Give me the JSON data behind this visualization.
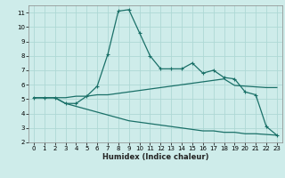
{
  "bg_color": "#ceecea",
  "grid_color": "#aed8d5",
  "line_color": "#1a7068",
  "xlabel": "Humidex (Indice chaleur)",
  "xlim": [
    -0.5,
    23.5
  ],
  "ylim": [
    2,
    11.5
  ],
  "yticks": [
    2,
    3,
    4,
    5,
    6,
    7,
    8,
    9,
    10,
    11
  ],
  "xticks": [
    0,
    1,
    2,
    3,
    4,
    5,
    6,
    7,
    8,
    9,
    10,
    11,
    12,
    13,
    14,
    15,
    16,
    17,
    18,
    19,
    20,
    21,
    22,
    23
  ],
  "line1_x": [
    0,
    1,
    2,
    3,
    4,
    5,
    6,
    7,
    8,
    9,
    10,
    11,
    12,
    13,
    14,
    15,
    16,
    17,
    18,
    19,
    20,
    21,
    22,
    23
  ],
  "line1_y": [
    5.1,
    5.1,
    5.1,
    4.7,
    4.7,
    5.2,
    5.9,
    8.1,
    11.1,
    11.2,
    9.6,
    8.0,
    7.1,
    7.1,
    7.1,
    7.5,
    6.8,
    7.0,
    6.5,
    6.4,
    5.5,
    5.3,
    3.1,
    2.5
  ],
  "line2_x": [
    0,
    1,
    2,
    3,
    4,
    5,
    6,
    7,
    8,
    9,
    10,
    11,
    12,
    13,
    14,
    15,
    16,
    17,
    18,
    19,
    20,
    21,
    22,
    23
  ],
  "line2_y": [
    5.1,
    5.1,
    5.1,
    5.1,
    5.2,
    5.2,
    5.3,
    5.3,
    5.4,
    5.5,
    5.6,
    5.7,
    5.8,
    5.9,
    6.0,
    6.1,
    6.2,
    6.3,
    6.4,
    5.95,
    5.9,
    5.85,
    5.8,
    5.8
  ],
  "line3_x": [
    0,
    1,
    2,
    3,
    4,
    5,
    6,
    7,
    8,
    9,
    10,
    11,
    12,
    13,
    14,
    15,
    16,
    17,
    18,
    19,
    20,
    21,
    22,
    23
  ],
  "line3_y": [
    5.1,
    5.1,
    5.1,
    4.7,
    4.5,
    4.3,
    4.1,
    3.9,
    3.7,
    3.5,
    3.4,
    3.3,
    3.2,
    3.1,
    3.0,
    2.9,
    2.8,
    2.8,
    2.7,
    2.7,
    2.6,
    2.6,
    2.55,
    2.5
  ]
}
